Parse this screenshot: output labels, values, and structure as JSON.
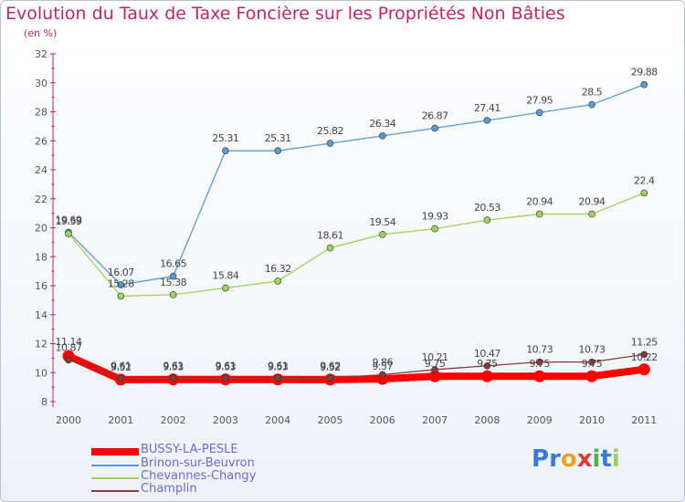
{
  "title": "Evolution du Taux de Taxe Foncière sur les Propriétés Non Bâties",
  "subtitle": "(en %)",
  "logo": "Proxiti",
  "chart_data": {
    "type": "line",
    "title": "Evolution du Taux de Taxe Foncière sur les Propriétés Non Bâties",
    "ylabel": "(en %)",
    "xlabel": "",
    "ylim": [
      8,
      32
    ],
    "yticks": [
      8,
      10,
      12,
      14,
      16,
      18,
      20,
      22,
      24,
      26,
      28,
      30,
      32
    ],
    "categories": [
      "2000",
      "2001",
      "2002",
      "2003",
      "2004",
      "2005",
      "2006",
      "2007",
      "2008",
      "2009",
      "2010",
      "2011"
    ],
    "grid": false,
    "legend": "bottom-left",
    "series": [
      {
        "name": "BUSSY-LA-PESLE",
        "color": "#ff0000",
        "values": [
          11.14,
          9.52,
          9.53,
          9.53,
          9.53,
          9.52,
          9.57,
          9.75,
          9.75,
          9.75,
          9.75,
          10.22
        ],
        "labels": [
          "11.14",
          "9.52",
          "9.53",
          "9.53",
          "9.53",
          "9.52",
          "9.57",
          "9.75",
          "9.75",
          "9.75",
          "9.75",
          "10.22"
        ]
      },
      {
        "name": "Brinon-sur-Beuvron",
        "color": "#5a9bd6",
        "values": [
          19.69,
          16.07,
          16.65,
          25.31,
          25.31,
          25.82,
          26.34,
          26.87,
          27.41,
          27.95,
          28.5,
          29.88
        ],
        "labels": [
          "19.69",
          "16.07",
          "16.65",
          "25.31",
          "25.31",
          "25.82",
          "26.34",
          "26.87",
          "27.41",
          "27.95",
          "28.5",
          "29.88"
        ]
      },
      {
        "name": "Chevannes-Changy",
        "color": "#9ad45a",
        "values": [
          19.59,
          15.28,
          15.38,
          15.84,
          16.32,
          18.61,
          19.54,
          19.93,
          20.53,
          20.94,
          20.94,
          22.4
        ],
        "labels": [
          "19.59",
          "15.28",
          "15.38",
          "15.84",
          "16.32",
          "18.61",
          "19.54",
          "19.93",
          "20.53",
          "20.94",
          "20.94",
          "22.4"
        ]
      },
      {
        "name": "Champlin",
        "color": "#8b3a3a",
        "values": [
          10.87,
          9.61,
          9.61,
          9.61,
          9.61,
          9.62,
          9.86,
          10.21,
          10.47,
          10.73,
          10.73,
          11.25
        ],
        "labels": [
          "10.87",
          "9.61",
          "9.61",
          "9.61",
          "9.61",
          "9.62",
          "9.86",
          "10.21",
          "10.47",
          "10.73",
          "10.73",
          "11.25"
        ]
      }
    ]
  }
}
